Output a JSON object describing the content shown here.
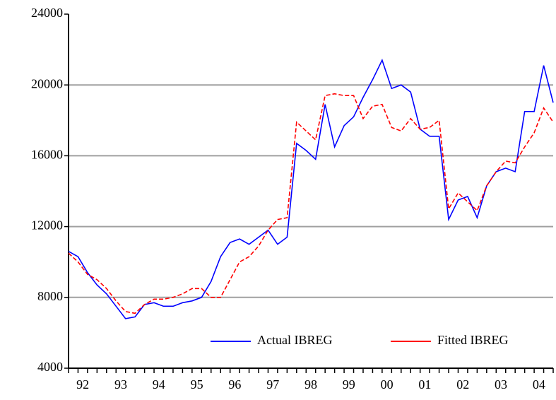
{
  "chart_data": {
    "type": "line",
    "categories": [
      "92",
      null,
      null,
      null,
      "93",
      null,
      null,
      null,
      "94",
      null,
      null,
      null,
      "95",
      null,
      null,
      null,
      "96",
      null,
      null,
      null,
      "97",
      null,
      null,
      null,
      "98",
      null,
      null,
      null,
      "99",
      null,
      null,
      null,
      "00",
      null,
      null,
      null,
      "01",
      null,
      null,
      null,
      "02",
      null,
      null,
      null,
      "03",
      null,
      null,
      null,
      "04",
      null,
      null,
      null
    ],
    "series": [
      {
        "name": "Actual IBREG",
        "color": "#0000ff",
        "values": [
          10600,
          10300,
          9400,
          8700,
          8200,
          7500,
          6800,
          6900,
          7600,
          7700,
          7500,
          7500,
          7700,
          7800,
          8000,
          8900,
          10300,
          11100,
          11300,
          11000,
          11400,
          11800,
          11000,
          11400,
          16700,
          16300,
          15800,
          18900,
          16500,
          17700,
          18200,
          19300,
          20300,
          21400,
          19800,
          20000,
          19600,
          17500,
          17100,
          17100,
          12400,
          13500,
          13700,
          12500,
          14300,
          15100,
          15300,
          15100,
          18500,
          18500,
          21100,
          19000
        ]
      },
      {
        "name": "Fitted IBREG",
        "color": "#ff0000",
        "values": [
          10500,
          10000,
          9300,
          9000,
          8500,
          7800,
          7200,
          7100,
          7600,
          7900,
          7900,
          8000,
          8200,
          8500,
          8500,
          8000,
          8000,
          9000,
          10000,
          10300,
          10900,
          11800,
          12400,
          12500,
          17900,
          17400,
          16900,
          19400,
          19500,
          19400,
          19400,
          18100,
          18800,
          18900,
          17600,
          17400,
          18100,
          17500,
          17600,
          18000,
          13000,
          13900,
          13400,
          12900,
          14300,
          15100,
          15700,
          15600,
          16500,
          17300,
          18700,
          17900
        ]
      }
    ],
    "ylim": [
      4000,
      24000
    ],
    "yticks": [
      4000,
      8000,
      12000,
      16000,
      20000,
      24000
    ],
    "grid": true,
    "legend": "lower right"
  }
}
